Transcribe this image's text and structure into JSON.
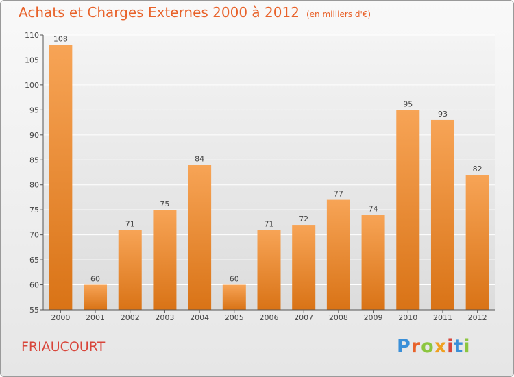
{
  "header": {
    "title": "Achats et Charges Externes 2000 à 2012",
    "subtitle": "(en milliers d'€)"
  },
  "footer": {
    "commune": "FRIAUCOURT",
    "brand": "Proxiti"
  },
  "colors": {
    "bar_top": "#f7a456",
    "bar_bottom": "#d97316",
    "title": "#e8622a",
    "commune": "#d8453a"
  },
  "chart_data": {
    "type": "bar",
    "title": "Achats et Charges Externes 2000 à 2012",
    "subtitle": "(en milliers d'€)",
    "categories": [
      "2000",
      "2001",
      "2002",
      "2003",
      "2004",
      "2005",
      "2006",
      "2007",
      "2008",
      "2009",
      "2010",
      "2011",
      "2012"
    ],
    "values": [
      108,
      60,
      71,
      75,
      84,
      60,
      71,
      72,
      77,
      74,
      95,
      93,
      82
    ],
    "ylim": [
      55,
      110
    ],
    "yticks": [
      55,
      60,
      65,
      70,
      75,
      80,
      85,
      90,
      95,
      100,
      105,
      110
    ],
    "grid": true,
    "legend": "none"
  }
}
